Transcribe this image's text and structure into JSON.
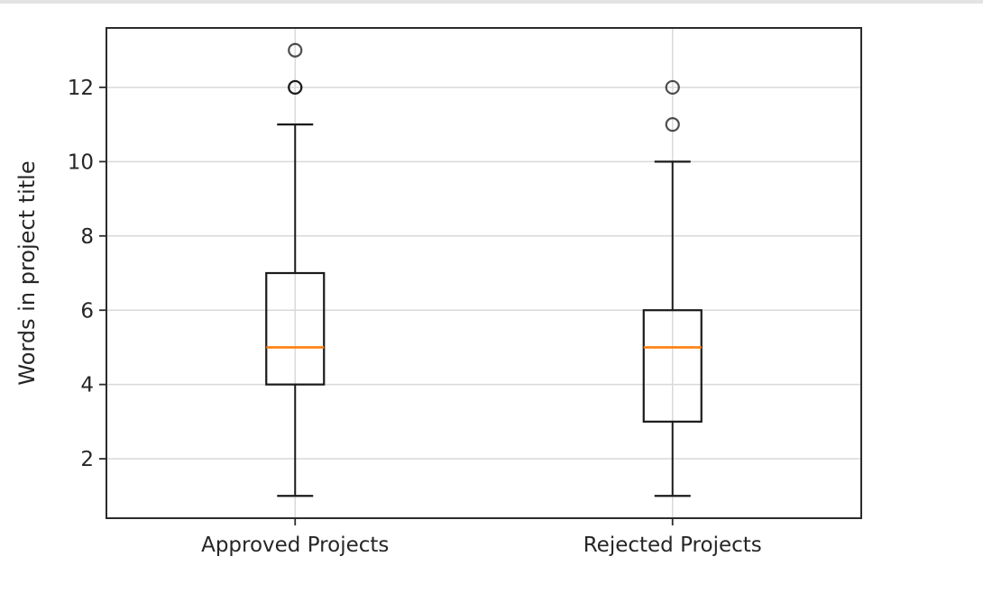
{
  "page": {
    "background_color": "#ffffff",
    "top_strip_color": "#e3e3e3"
  },
  "chart_data": {
    "type": "boxplot",
    "title": "",
    "xlabel": "",
    "ylabel": "Words in project title",
    "categories": [
      "Approved Projects",
      "Rejected Projects"
    ],
    "yticks": [
      2,
      4,
      6,
      8,
      10,
      12
    ],
    "ylim": [
      0.4,
      13.6
    ],
    "grid": true,
    "legend": false,
    "colors": {
      "box_stroke": "#1a1a1a",
      "median": "#ff7f0e",
      "grid_line": "#d9d9d9",
      "axis_frame": "#2b2b2b",
      "tick_text": "#262626",
      "outlier_stroke": "#0a0a0a"
    },
    "series": [
      {
        "name": "Approved Projects",
        "whisker_low": 1,
        "q1": 4,
        "median": 5,
        "q3": 7,
        "whisker_high": 11,
        "outliers": [
          12,
          12,
          13
        ]
      },
      {
        "name": "Rejected Projects",
        "whisker_low": 1,
        "q1": 3,
        "median": 5,
        "q3": 6,
        "whisker_high": 10,
        "outliers": [
          11,
          12
        ]
      }
    ]
  }
}
